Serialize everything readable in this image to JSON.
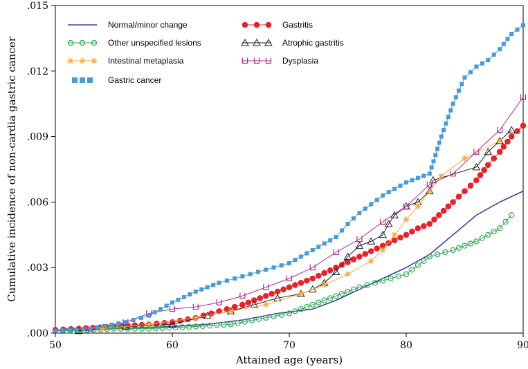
{
  "chart_data": {
    "type": "line",
    "xlabel": "Attained age (years)",
    "ylabel": "Cumulative incidence of non-cardia gastric cancer",
    "xlim": [
      50,
      90
    ],
    "ylim": [
      0,
      0.015
    ],
    "xticks": [
      "50",
      "60",
      "70",
      "80",
      "90"
    ],
    "yticks": [
      ".000",
      ".003",
      ".006",
      ".009",
      ".012",
      ".015"
    ],
    "grid": false,
    "legend_position": "top-left, inside plot, two columns",
    "series": [
      {
        "name": "Normal/minor change",
        "color": "#3a3aa8",
        "marker": "none",
        "x": [
          50,
          55,
          60,
          63,
          66,
          69,
          72,
          74,
          76,
          78,
          80,
          82,
          84,
          86,
          88,
          90
        ],
        "y": [
          0.0001,
          0.0002,
          0.0003,
          0.0004,
          0.0006,
          0.0009,
          0.0011,
          0.0015,
          0.002,
          0.0025,
          0.003,
          0.0036,
          0.0045,
          0.0054,
          0.006,
          0.0065
        ]
      },
      {
        "name": "Gastritis",
        "color": "#e8222a",
        "marker": "filled-circle",
        "x": [
          50,
          52,
          55,
          58,
          60,
          62,
          64,
          66,
          68,
          70,
          72,
          74,
          76,
          78,
          80,
          81,
          82,
          84,
          85,
          86,
          87,
          88,
          89,
          90
        ],
        "y": [
          0.00015,
          0.0002,
          0.0003,
          0.0004,
          0.0005,
          0.0007,
          0.001,
          0.0013,
          0.0017,
          0.0021,
          0.0025,
          0.003,
          0.0035,
          0.004,
          0.0045,
          0.0048,
          0.005,
          0.006,
          0.0065,
          0.007,
          0.0077,
          0.0083,
          0.009,
          0.0095
        ]
      },
      {
        "name": "Other unspecified lesions",
        "color": "#2eaa55",
        "marker": "open-circle",
        "x": [
          51,
          55,
          58,
          62,
          65,
          68,
          70,
          72,
          74,
          76,
          78,
          80,
          82,
          84,
          86,
          88,
          89
        ],
        "y": [
          0.0001,
          0.0002,
          0.0002,
          0.0003,
          0.0004,
          0.0007,
          0.0009,
          0.0013,
          0.0017,
          0.0021,
          0.0024,
          0.0027,
          0.0035,
          0.0038,
          0.0042,
          0.0048,
          0.0054
        ]
      },
      {
        "name": "Atrophic gastritis",
        "color": "#222222",
        "marker": "open-triangle",
        "x": [
          52,
          56,
          60,
          63,
          65,
          67,
          69,
          71,
          72,
          73,
          74,
          75,
          76,
          77,
          78,
          78.5,
          79,
          80,
          81,
          82,
          82.3,
          86,
          87,
          88,
          89
        ],
        "y": [
          0.0001,
          0.0003,
          0.0004,
          0.0008,
          0.001,
          0.0013,
          0.0016,
          0.0018,
          0.002,
          0.0023,
          0.0028,
          0.0035,
          0.004,
          0.0042,
          0.0045,
          0.005,
          0.0054,
          0.0058,
          0.006,
          0.0065,
          0.007,
          0.0076,
          0.0083,
          0.0088,
          0.0093
        ]
      },
      {
        "name": "Intestinal metaplasia",
        "color": "#f4a840",
        "marker": "star",
        "x": [
          54,
          58,
          62,
          65,
          68,
          71,
          73,
          75,
          77,
          78,
          79,
          80,
          81,
          82,
          83,
          85,
          88
        ],
        "y": [
          0.0002,
          0.0004,
          0.0007,
          0.001,
          0.0013,
          0.0018,
          0.0022,
          0.0027,
          0.0033,
          0.0038,
          0.0045,
          0.0052,
          0.0058,
          0.0065,
          0.0072,
          0.008,
          0.0088
        ]
      },
      {
        "name": "Dysplasia",
        "color": "#b02c8a",
        "marker": "open-square-u",
        "x": [
          53,
          56,
          58,
          60,
          62,
          64,
          66,
          68,
          70,
          72,
          74,
          76,
          78,
          80,
          82,
          84,
          86,
          88,
          90
        ],
        "y": [
          0.0002,
          0.0005,
          0.0009,
          0.0011,
          0.0012,
          0.0014,
          0.0017,
          0.0021,
          0.0025,
          0.003,
          0.0037,
          0.0043,
          0.0051,
          0.0058,
          0.0068,
          0.0073,
          0.0083,
          0.0093,
          0.0108
        ]
      },
      {
        "name": "Gastric cancer",
        "color": "#4a9ad8",
        "marker": "filled-square",
        "x": [
          50,
          53,
          56,
          58,
          60,
          62,
          64,
          66,
          68,
          70,
          72,
          74,
          75,
          76,
          77,
          78,
          79,
          80,
          81,
          82,
          83,
          84,
          85,
          86,
          87,
          88,
          89,
          90
        ],
        "y": [
          0.0001,
          0.0002,
          0.0005,
          0.0008,
          0.0014,
          0.0019,
          0.0023,
          0.0026,
          0.0029,
          0.0032,
          0.0038,
          0.0044,
          0.005,
          0.0055,
          0.0059,
          0.0063,
          0.0066,
          0.0069,
          0.0071,
          0.0073,
          0.009,
          0.0105,
          0.0117,
          0.0122,
          0.0125,
          0.013,
          0.0137,
          0.0141
        ]
      }
    ]
  }
}
